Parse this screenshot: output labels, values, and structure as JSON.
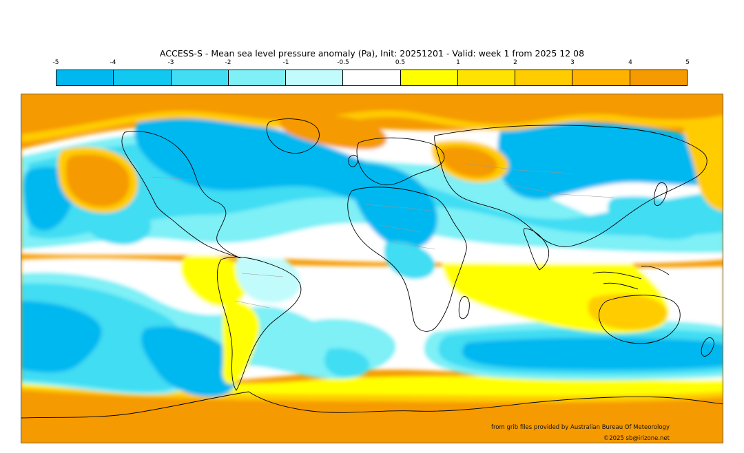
{
  "title": "ACCESS-S - Mean sea level pressure anomaly (Pa), Init: 20251201 - Valid: week 1 from 2025 12 08",
  "colorbar": {
    "ticks": [
      "-5",
      "-4",
      "-3",
      "-2",
      "-1",
      "-0.5",
      "0.5",
      "1",
      "2",
      "3",
      "4",
      "5"
    ],
    "colors": [
      "#00b8f0",
      "#10c8f0",
      "#40ddf3",
      "#7ef0f6",
      "#c2fbfb",
      "#ffffff",
      "#ffff00",
      "#ffe300",
      "#ffcc00",
      "#ffb300",
      "#f59a00"
    ]
  },
  "credits": {
    "source": "from grib files provided by Australian Bureau Of Meteorology",
    "copyright": "©2025 sb@irizone.net"
  }
}
